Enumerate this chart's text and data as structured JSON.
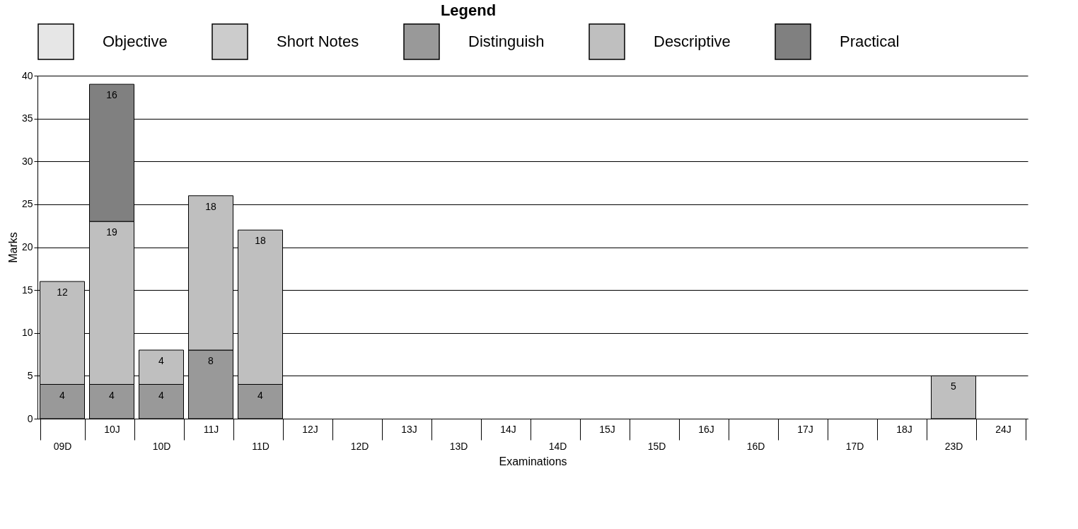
{
  "chart_data": {
    "type": "bar",
    "stacked": true,
    "xlabel": "Examinations",
    "ylabel": "Marks",
    "legend_title": "Legend",
    "legend": "top",
    "categories": [
      "09D",
      "10J",
      "10D",
      "11J",
      "11D",
      "12J",
      "12D",
      "13J",
      "13D",
      "14J",
      "14D",
      "15J",
      "15D",
      "16J",
      "16D",
      "17J",
      "17D",
      "18J",
      "23D",
      "24J"
    ],
    "series": [
      {
        "name": "Objective",
        "color": "#e6e6e6",
        "values": [
          null,
          null,
          null,
          null,
          null,
          null,
          null,
          null,
          null,
          null,
          null,
          null,
          null,
          null,
          null,
          null,
          null,
          null,
          null,
          null
        ]
      },
      {
        "name": "Short Notes",
        "color": "#cccccc",
        "values": [
          null,
          null,
          null,
          null,
          null,
          null,
          null,
          null,
          null,
          null,
          null,
          null,
          null,
          null,
          null,
          null,
          null,
          null,
          null,
          null
        ]
      },
      {
        "name": "Distinguish",
        "color": "#999999",
        "values": [
          4,
          4,
          4,
          8,
          4,
          null,
          null,
          null,
          null,
          null,
          null,
          null,
          null,
          null,
          null,
          null,
          null,
          null,
          null,
          null
        ]
      },
      {
        "name": "Descriptive",
        "color": "#bfbfbf",
        "values": [
          12,
          19,
          4,
          18,
          18,
          null,
          null,
          null,
          null,
          null,
          null,
          null,
          null,
          null,
          null,
          null,
          null,
          null,
          5,
          null
        ]
      },
      {
        "name": "Practical",
        "color": "#808080",
        "values": [
          null,
          16,
          null,
          null,
          null,
          null,
          null,
          null,
          null,
          null,
          null,
          null,
          null,
          null,
          null,
          null,
          null,
          null,
          null,
          null
        ]
      }
    ],
    "ylim": [
      0,
      40
    ],
    "yticks": [
      0,
      5,
      10,
      15,
      20,
      25,
      30,
      35,
      40
    ],
    "grid": "y",
    "data_labels": true
  }
}
